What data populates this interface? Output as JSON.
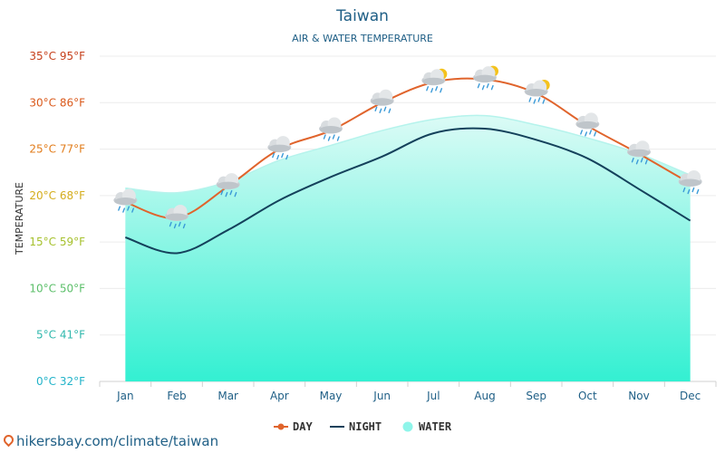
{
  "chart_data": {
    "type": "line",
    "title": "Taiwan",
    "subtitle": "AIR & WATER TEMPERATURE",
    "ylabel": "TEMPERATURE",
    "categories": [
      "Jan",
      "Feb",
      "Mar",
      "Apr",
      "May",
      "Jun",
      "Jul",
      "Aug",
      "Sep",
      "Oct",
      "Nov",
      "Dec"
    ],
    "y_ticks": [
      "0°C 32°F",
      "5°C 41°F",
      "10°C 50°F",
      "15°C 59°F",
      "20°C 68°F",
      "25°C 77°F",
      "30°C 86°F",
      "35°C 95°F"
    ],
    "ylim": [
      0,
      35
    ],
    "series": [
      {
        "name": "DAY",
        "color": "#e0642c",
        "values": [
          19.3,
          17.6,
          21.0,
          25.0,
          27.0,
          30.0,
          32.2,
          32.5,
          31.0,
          27.5,
          24.5,
          21.3
        ]
      },
      {
        "name": "NIGHT",
        "color": "#14415b",
        "values": [
          15.5,
          13.8,
          16.3,
          19.5,
          22.0,
          24.2,
          26.7,
          27.2,
          26.0,
          24.0,
          20.7,
          17.3
        ]
      },
      {
        "name": "WATER",
        "color": "#6ff3e3",
        "values": [
          20.8,
          20.3,
          21.5,
          23.8,
          25.4,
          27.0,
          28.2,
          28.6,
          27.6,
          26.2,
          24.5,
          22.2
        ]
      }
    ],
    "weather_icons": [
      "rain",
      "rain",
      "rain",
      "rain",
      "rain",
      "rain",
      "sun-rain",
      "sun-rain",
      "sun-rain",
      "rain",
      "rain",
      "rain"
    ],
    "grid": true,
    "legend_position": "bottom-center"
  },
  "source": "hikersbay.com/climate/taiwan"
}
